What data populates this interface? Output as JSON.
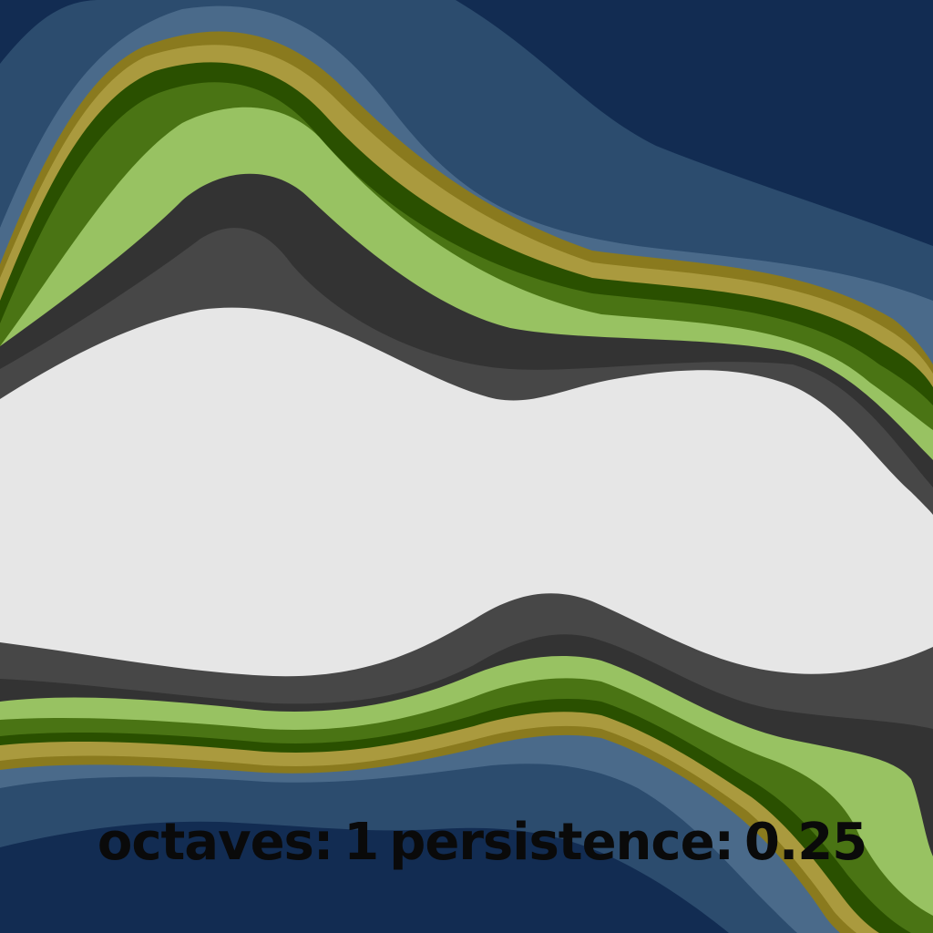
{
  "caption": {
    "octaves_label": "octaves:",
    "octaves_value": "1",
    "persistence_label": "persistence:",
    "persistence_value": "0.25"
  },
  "palette": {
    "deep_water": "#122c52",
    "water": "#2c4c6e",
    "shallow_water": "#4a6a8a",
    "sand_dark": "#8a7a1e",
    "sand": "#aa9a3e",
    "dark_forest": "#2a5000",
    "forest": "#4a7414",
    "grass": "#98c262",
    "rock_dark": "#333333",
    "rock": "#474747",
    "snow": "#e6e6e6"
  }
}
